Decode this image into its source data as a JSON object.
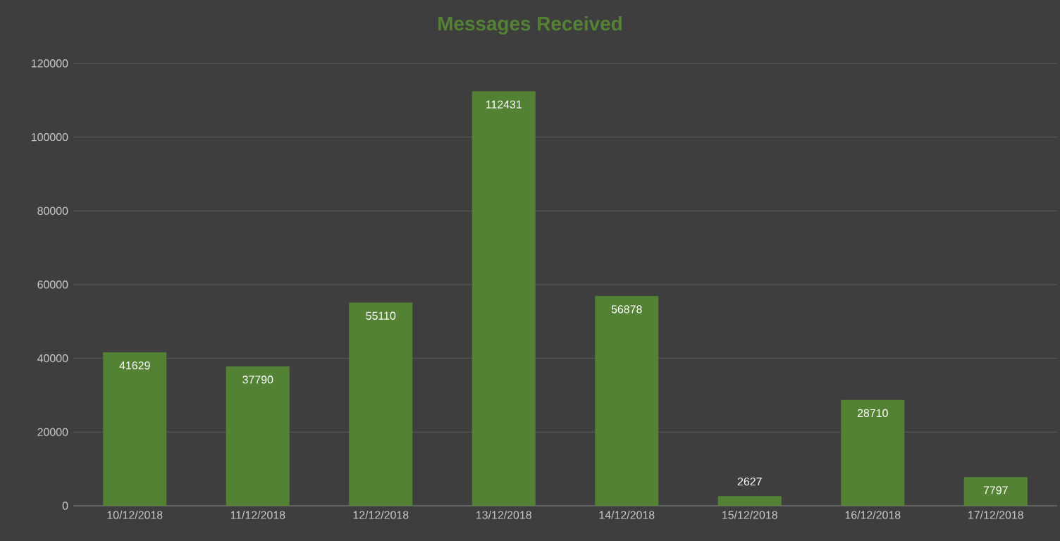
{
  "chart_data": {
    "type": "bar",
    "title": "Messages Received",
    "categories": [
      "10/12/2018",
      "11/12/2018",
      "12/12/2018",
      "13/12/2018",
      "14/12/2018",
      "15/12/2018",
      "16/12/2018",
      "17/12/2018"
    ],
    "values": [
      41629,
      37790,
      55110,
      112431,
      56878,
      2627,
      28710,
      7797
    ],
    "color": "#548235",
    "ylim": [
      0,
      120000
    ],
    "yticks": [
      0,
      20000,
      40000,
      60000,
      80000,
      100000,
      120000
    ],
    "grid": "y",
    "data_labels": true
  }
}
